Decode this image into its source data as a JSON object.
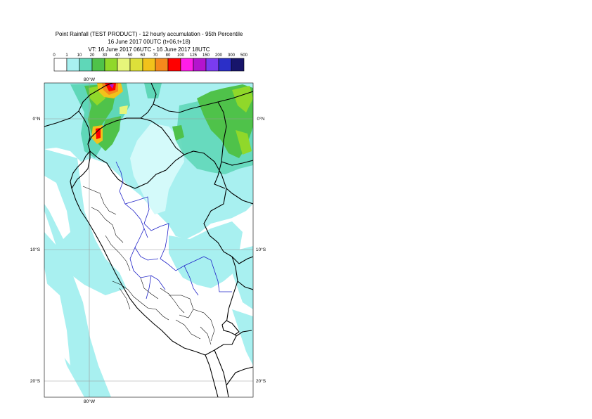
{
  "title": {
    "line1": "Point Rainfall (TEST PRODUCT) - 12 hourly accumulation - 95th Percentile",
    "line2": "16 June 2017 00UTC (t+06,t+18)",
    "line3": "VT: 16 June 2017 06UTC - 16 June 2017 18UTC"
  },
  "legend": {
    "ticks": [
      "0",
      "1",
      "10",
      "20",
      "30",
      "40",
      "50",
      "60",
      "70",
      "80",
      "100",
      "125",
      "150",
      "200",
      "300",
      "500"
    ],
    "colors": [
      "#ffffff",
      "#a8f0f0",
      "#5fd7b8",
      "#4fc24a",
      "#90d82a",
      "#e6f57a",
      "#dde03a",
      "#f2c21b",
      "#f5891c",
      "#ff0000",
      "#ff1ee8",
      "#b414ce",
      "#7a3cf0",
      "#2b2fc8",
      "#17156b"
    ]
  },
  "map": {
    "lon_labels": [
      "80°W",
      "80°W"
    ],
    "lat_labels": {
      "eq": "0°N",
      "s10": "10°S",
      "s20": "20°S"
    }
  }
}
